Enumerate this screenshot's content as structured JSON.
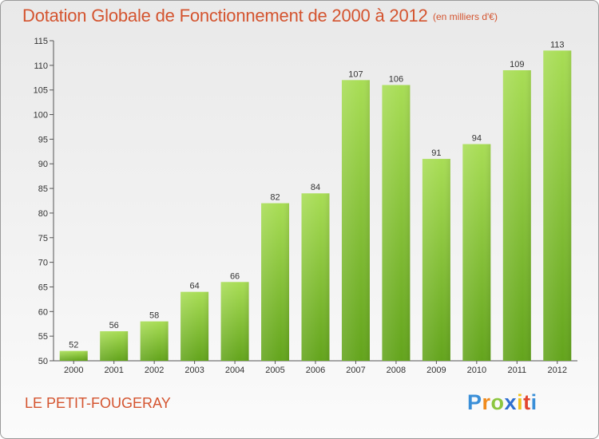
{
  "title": "Dotation Globale de Fonctionnement de 2000 à 2012",
  "unit_note": "(en milliers d'€)",
  "commune": "LE PETIT-FOUGERAY",
  "logo": {
    "letters": [
      "P",
      "r",
      "o",
      "x",
      "i",
      "t",
      "i"
    ],
    "colors": [
      "#3a8fd8",
      "#f08a1c",
      "#8cc63f",
      "#2f6fd0",
      "#f0c21c",
      "#e2452f",
      "#3a8fd8"
    ]
  },
  "colors": {
    "bar_light": "#a8dd55",
    "bar_dark": "#63a41c",
    "title": "#d4542f"
  },
  "chart_data": {
    "type": "bar",
    "title": "Dotation Globale de Fonctionnement de 2000 à 2012",
    "xlabel": "",
    "ylabel": "",
    "categories": [
      "2000",
      "2001",
      "2002",
      "2003",
      "2004",
      "2005",
      "2006",
      "2007",
      "2008",
      "2009",
      "2010",
      "2011",
      "2012"
    ],
    "values": [
      52,
      56,
      58,
      64,
      66,
      82,
      84,
      107,
      106,
      91,
      94,
      109,
      113
    ],
    "ylim": [
      50,
      115
    ],
    "yticks": [
      50,
      55,
      60,
      65,
      70,
      75,
      80,
      85,
      90,
      95,
      100,
      105,
      110,
      115
    ],
    "grid": false,
    "data_labels": true
  }
}
